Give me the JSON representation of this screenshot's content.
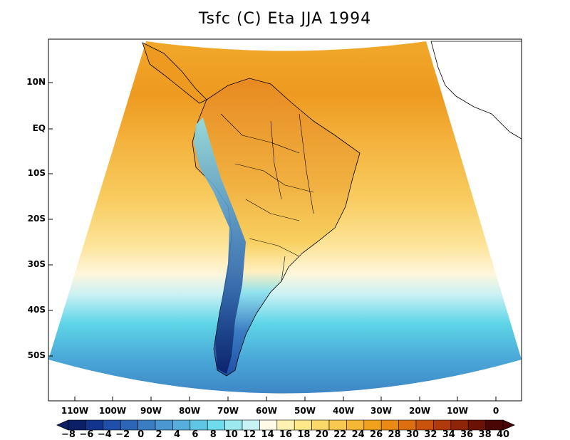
{
  "title": "Tsfc (C) Eta JJA 1994",
  "lat_labels": [
    "10N",
    "EQ",
    "10S",
    "20S",
    "30S",
    "40S",
    "50S"
  ],
  "lon_labels": [
    "110W",
    "100W",
    "90W",
    "80W",
    "70W",
    "60W",
    "50W",
    "40W",
    "30W",
    "20W",
    "10W",
    "0"
  ],
  "colorbar": {
    "ticks": [
      "−8",
      "−6",
      "−4",
      "−2",
      "0",
      "2",
      "4",
      "6",
      "8",
      "10",
      "12",
      "14",
      "16",
      "18",
      "20",
      "22",
      "24",
      "26",
      "28",
      "30",
      "32",
      "34",
      "36",
      "38",
      "40"
    ],
    "colors": [
      "#0a1f66",
      "#13338c",
      "#1f4fa8",
      "#2e66b6",
      "#3a7dc3",
      "#4a97d1",
      "#55aedb",
      "#5fc7e4",
      "#6edcec",
      "#9ceaf0",
      "#c8f3f4",
      "#fffbe8",
      "#fff2b0",
      "#ffe88a",
      "#fbd86a",
      "#f8c850",
      "#f5b835",
      "#f0a21e",
      "#e88a14",
      "#dc6f10",
      "#c9520c",
      "#b03a0a",
      "#8e2508",
      "#6b1206",
      "#4a0505"
    ]
  },
  "colors": {
    "land_outline": "#000000",
    "frame": "#000000"
  }
}
